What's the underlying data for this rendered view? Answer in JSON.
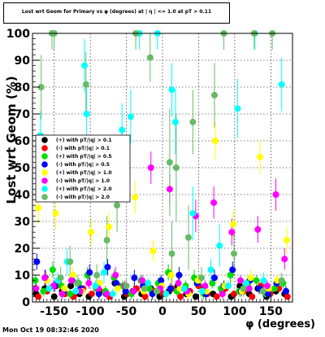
{
  "title": "Lost wrt Geom for Primary vs φ (degrees) at | η | <= 1.0 at pT > 0.11",
  "timestamp": "Mon Oct 19 08:32:46 2020",
  "chart_data": {
    "type": "scatter",
    "title": "Lost wrt Geom for Primary vs φ (degrees) at | η | <= 1.0 at pT > 0.11",
    "xlabel": "φ (degrees)",
    "ylabel": "Lost wrt Geom (%)",
    "xlim": [
      -180,
      180
    ],
    "ylim": [
      0,
      100
    ],
    "xticks": [
      -150,
      -100,
      -50,
      0,
      50,
      100,
      150
    ],
    "yticks": [
      0,
      10,
      20,
      30,
      40,
      50,
      60,
      70,
      80,
      90,
      100
    ],
    "grid": true,
    "legend_position": "left-middle",
    "series": [
      {
        "name": "(+) with pT/|q| > 0.1",
        "color": "#000000",
        "points": [
          [
            -175,
            3,
            1
          ],
          [
            -163,
            5,
            1
          ],
          [
            -150,
            2,
            1
          ],
          [
            -139,
            4,
            1
          ],
          [
            -127,
            6,
            1
          ],
          [
            -115,
            3,
            1
          ],
          [
            -102,
            2,
            1
          ],
          [
            -90,
            5,
            1
          ],
          [
            -78,
            3,
            1
          ],
          [
            -66,
            7,
            1
          ],
          [
            -53,
            2,
            1
          ],
          [
            -41,
            4,
            1
          ],
          [
            -29,
            3,
            1
          ],
          [
            -16,
            5,
            1
          ],
          [
            -4,
            2,
            1
          ],
          [
            9,
            4,
            1
          ],
          [
            21,
            6,
            1
          ],
          [
            33,
            3,
            1
          ],
          [
            46,
            2,
            1
          ],
          [
            58,
            5,
            1
          ],
          [
            70,
            3,
            1
          ],
          [
            83,
            4,
            1
          ],
          [
            95,
            2,
            1
          ],
          [
            107,
            6,
            1
          ],
          [
            120,
            3,
            1
          ],
          [
            132,
            5,
            1
          ],
          [
            144,
            2,
            1
          ],
          [
            157,
            4,
            1
          ],
          [
            169,
            3,
            1
          ]
        ]
      },
      {
        "name": "(-) with pT/|q| > 0.1",
        "color": "#ff0000",
        "points": [
          [
            -172,
            2,
            1
          ],
          [
            -160,
            4,
            1
          ],
          [
            -147,
            6,
            1
          ],
          [
            -135,
            3,
            1
          ],
          [
            -123,
            2,
            1
          ],
          [
            -110,
            5,
            1
          ],
          [
            -98,
            3,
            1
          ],
          [
            -86,
            4,
            1
          ],
          [
            -73,
            2,
            1
          ],
          [
            -61,
            6,
            1
          ],
          [
            -49,
            3,
            1
          ],
          [
            -36,
            5,
            1
          ],
          [
            -24,
            2,
            1
          ],
          [
            -12,
            4,
            1
          ],
          [
            1,
            3,
            1
          ],
          [
            13,
            5,
            1
          ],
          [
            25,
            2,
            1
          ],
          [
            38,
            4,
            1
          ],
          [
            50,
            6,
            1
          ],
          [
            62,
            3,
            1
          ],
          [
            75,
            2,
            1
          ],
          [
            87,
            5,
            1
          ],
          [
            99,
            3,
            1
          ],
          [
            112,
            4,
            1
          ],
          [
            124,
            2,
            1
          ],
          [
            136,
            6,
            1
          ],
          [
            149,
            3,
            1
          ],
          [
            161,
            5,
            1
          ],
          [
            173,
            2,
            1
          ]
        ]
      },
      {
        "name": "(+) with pT/|q| > 0.5",
        "color": "#00dd00",
        "points": [
          [
            -176,
            8,
            2
          ],
          [
            -165,
            4,
            2
          ],
          [
            -152,
            12,
            3
          ],
          [
            -140,
            6,
            2
          ],
          [
            -128,
            3,
            2
          ],
          [
            -116,
            7,
            2
          ],
          [
            -104,
            10,
            3
          ],
          [
            -92,
            5,
            2
          ],
          [
            -79,
            4,
            2
          ],
          [
            -67,
            9,
            3
          ],
          [
            -55,
            6,
            2
          ],
          [
            -43,
            3,
            2
          ],
          [
            -30,
            8,
            2
          ],
          [
            -18,
            5,
            2
          ],
          [
            -6,
            7,
            2
          ],
          [
            8,
            11,
            3
          ],
          [
            20,
            4,
            2
          ],
          [
            32,
            6,
            2
          ],
          [
            44,
            9,
            3
          ],
          [
            57,
            3,
            2
          ],
          [
            69,
            7,
            2
          ],
          [
            81,
            5,
            2
          ],
          [
            94,
            10,
            3
          ],
          [
            106,
            4,
            2
          ],
          [
            118,
            6,
            2
          ],
          [
            130,
            8,
            2
          ],
          [
            143,
            3,
            2
          ],
          [
            155,
            5,
            2
          ],
          [
            167,
            7,
            2
          ]
        ]
      },
      {
        "name": "(-) with pT/|q| > 0.5",
        "color": "#0000ff",
        "points": [
          [
            -174,
            15,
            3
          ],
          [
            -162,
            9,
            3
          ],
          [
            -149,
            6,
            2
          ],
          [
            -137,
            4,
            2
          ],
          [
            -125,
            8,
            2
          ],
          [
            -113,
            5,
            2
          ],
          [
            -101,
            11,
            3
          ],
          [
            -88,
            3,
            2
          ],
          [
            -76,
            13,
            3
          ],
          [
            -64,
            7,
            2
          ],
          [
            -51,
            4,
            2
          ],
          [
            -39,
            9,
            3
          ],
          [
            -27,
            6,
            2
          ],
          [
            -14,
            3,
            2
          ],
          [
            -2,
            8,
            2
          ],
          [
            11,
            5,
            2
          ],
          [
            23,
            10,
            3
          ],
          [
            35,
            4,
            2
          ],
          [
            48,
            7,
            2
          ],
          [
            60,
            3,
            2
          ],
          [
            72,
            9,
            3
          ],
          [
            85,
            6,
            2
          ],
          [
            97,
            12,
            3
          ],
          [
            109,
            4,
            2
          ],
          [
            121,
            8,
            2
          ],
          [
            134,
            5,
            2
          ],
          [
            146,
            3,
            2
          ],
          [
            158,
            7,
            2
          ],
          [
            171,
            4,
            2
          ]
        ]
      },
      {
        "name": "(+) with pT/|q| > 1.0",
        "color": "#ffff00",
        "points": [
          [
            -172,
            35,
            6
          ],
          [
            -160,
            8,
            3
          ],
          [
            -148,
            33,
            6
          ],
          [
            -136,
            5,
            2
          ],
          [
            -124,
            10,
            3
          ],
          [
            -111,
            4,
            2
          ],
          [
            -99,
            26,
            5
          ],
          [
            -87,
            7,
            2
          ],
          [
            -74,
            28,
            5
          ],
          [
            -62,
            5,
            2
          ],
          [
            -50,
            6,
            2
          ],
          [
            -38,
            39,
            6
          ],
          [
            -26,
            4,
            2
          ],
          [
            -13,
            19,
            4
          ],
          [
            -1,
            6,
            2
          ],
          [
            12,
            10,
            3
          ],
          [
            24,
            5,
            2
          ],
          [
            36,
            3,
            2
          ],
          [
            49,
            8,
            2
          ],
          [
            61,
            4,
            2
          ],
          [
            73,
            60,
            7
          ],
          [
            86,
            6,
            2
          ],
          [
            98,
            29,
            5
          ],
          [
            110,
            4,
            2
          ],
          [
            122,
            9,
            3
          ],
          [
            135,
            54,
            6
          ],
          [
            147,
            5,
            2
          ],
          [
            159,
            8,
            2
          ],
          [
            172,
            23,
            5
          ]
        ]
      },
      {
        "name": "(-) with pT/|q| > 1.0",
        "color": "#ff00ff",
        "points": [
          [
            -175,
            5,
            2
          ],
          [
            -163,
            9,
            3
          ],
          [
            -151,
            6,
            2
          ],
          [
            -139,
            3,
            2
          ],
          [
            -126,
            8,
            2
          ],
          [
            -114,
            4,
            2
          ],
          [
            -102,
            7,
            2
          ],
          [
            -89,
            5,
            2
          ],
          [
            -77,
            3,
            2
          ],
          [
            -65,
            10,
            3
          ],
          [
            -52,
            6,
            2
          ],
          [
            -40,
            4,
            2
          ],
          [
            -28,
            8,
            2
          ],
          [
            -16,
            50,
            6
          ],
          [
            -3,
            5,
            2
          ],
          [
            10,
            42,
            6
          ],
          [
            22,
            7,
            2
          ],
          [
            34,
            4,
            2
          ],
          [
            46,
            32,
            6
          ],
          [
            59,
            6,
            2
          ],
          [
            71,
            37,
            6
          ],
          [
            83,
            3,
            2
          ],
          [
            96,
            26,
            5
          ],
          [
            108,
            8,
            2
          ],
          [
            120,
            5,
            2
          ],
          [
            132,
            27,
            5
          ],
          [
            145,
            6,
            2
          ],
          [
            157,
            40,
            6
          ],
          [
            169,
            16,
            4
          ]
        ]
      },
      {
        "name": "(+) with pT/|q| > 2.0",
        "color": "#00ffff",
        "points": [
          [
            -169,
            62,
            9
          ],
          [
            -157,
            5,
            2
          ],
          [
            -145,
            8,
            3
          ],
          [
            -132,
            15,
            5
          ],
          [
            -120,
            4,
            2
          ],
          [
            -108,
            88,
            10
          ],
          [
            -105,
            70,
            10
          ],
          [
            -93,
            6,
            2
          ],
          [
            -81,
            11,
            4
          ],
          [
            -69,
            3,
            2
          ],
          [
            -56,
            64,
            10
          ],
          [
            -44,
            69,
            10
          ],
          [
            -32,
            100,
            6
          ],
          [
            -20,
            7,
            2
          ],
          [
            -7,
            100,
            6
          ],
          [
            5,
            3,
            2
          ],
          [
            13,
            79,
            10
          ],
          [
            18,
            67,
            12
          ],
          [
            30,
            5,
            2
          ],
          [
            42,
            33,
            10
          ],
          [
            55,
            4,
            2
          ],
          [
            67,
            12,
            4
          ],
          [
            79,
            21,
            8
          ],
          [
            91,
            6,
            2
          ],
          [
            104,
            72,
            11
          ],
          [
            116,
            7,
            2
          ],
          [
            128,
            100,
            6
          ],
          [
            140,
            8,
            3
          ],
          [
            165,
            81,
            10
          ]
        ]
      },
      {
        "name": "(-) with pT/|q| > 2.0",
        "color": "#66bb66",
        "points": [
          [
            -168,
            80,
            12
          ],
          [
            -153,
            100,
            6
          ],
          [
            -150,
            100,
            6
          ],
          [
            -141,
            9,
            4
          ],
          [
            -128,
            15,
            6
          ],
          [
            -118,
            7,
            3
          ],
          [
            -106,
            81,
            12
          ],
          [
            -91,
            10,
            4
          ],
          [
            -77,
            23,
            9
          ],
          [
            -63,
            36,
            10
          ],
          [
            -50,
            6,
            3
          ],
          [
            -37,
            100,
            6
          ],
          [
            -25,
            5,
            3
          ],
          [
            -17,
            91,
            9
          ],
          [
            -8,
            4,
            2
          ],
          [
            10,
            52,
            20
          ],
          [
            13,
            18,
            12
          ],
          [
            19,
            50,
            20
          ],
          [
            36,
            24,
            12
          ],
          [
            42,
            67,
            12
          ],
          [
            54,
            9,
            4
          ],
          [
            72,
            77,
            12
          ],
          [
            85,
            100,
            6
          ],
          [
            99,
            18,
            8
          ],
          [
            112,
            5,
            3
          ],
          [
            127,
            100,
            6
          ],
          [
            139,
            4,
            2
          ],
          [
            152,
            100,
            6
          ],
          [
            165,
            8,
            3
          ]
        ]
      }
    ]
  }
}
